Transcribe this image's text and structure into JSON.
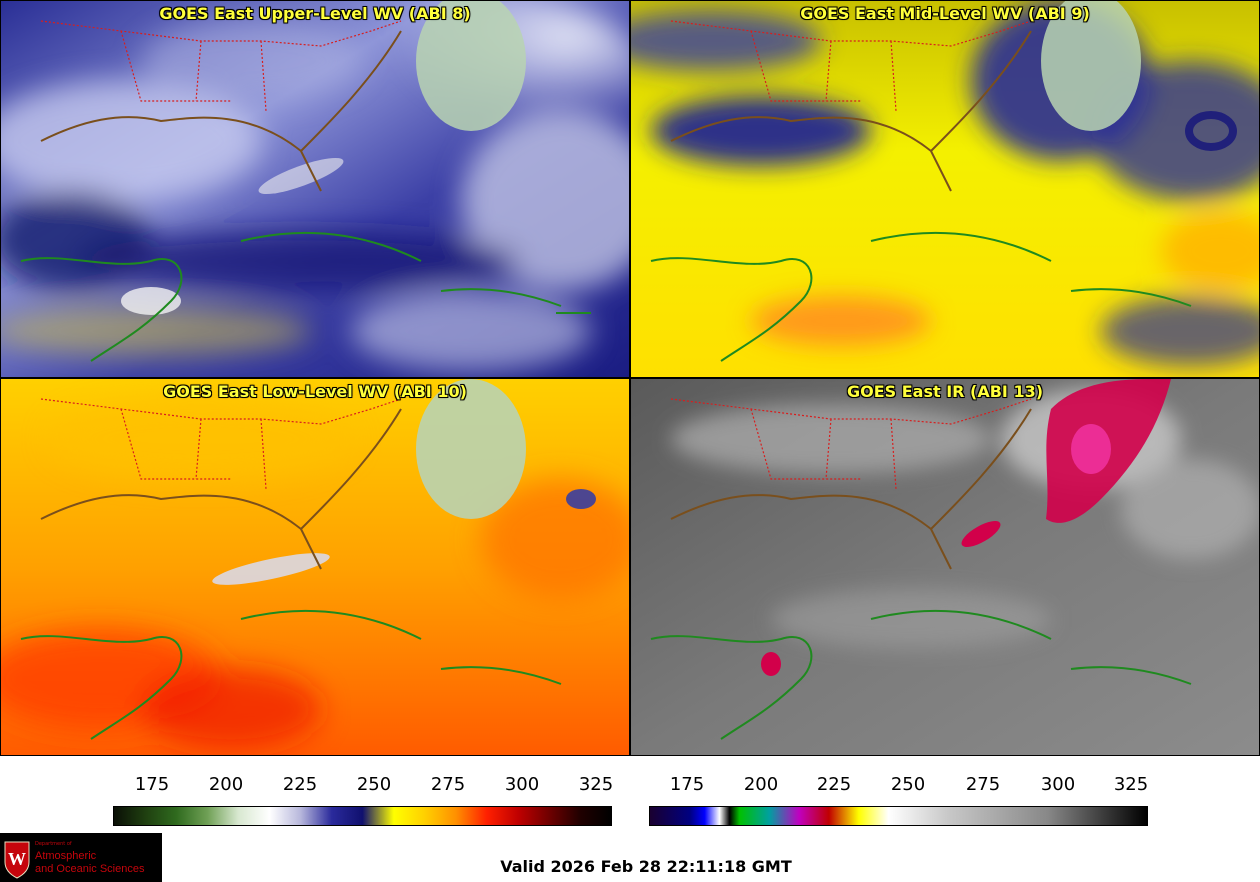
{
  "panels": [
    {
      "title": "GOES East Upper-Level WV (ABI 8)",
      "palette": "wv_upper"
    },
    {
      "title": "GOES East Mid-Level WV (ABI 9)",
      "palette": "wv_mid"
    },
    {
      "title": "GOES East Low-Level WV (ABI 10)",
      "palette": "wv_low"
    },
    {
      "title": "GOES East IR (ABI 13)",
      "palette": "ir"
    }
  ],
  "colorbars": [
    {
      "name": "wv",
      "ticks": [
        "175",
        "200",
        "225",
        "250",
        "275",
        "300",
        "325"
      ],
      "stops": [
        "#0a0f06",
        "#1f3f10",
        "#2f6a1e",
        "#6fa055",
        "#d8e8d0",
        "#ffffff",
        "#b8b8dc",
        "#2a2a9c",
        "#10106e",
        "#ffff00",
        "#ffd000",
        "#ff9000",
        "#ff2000",
        "#c00000",
        "#700000",
        "#200000",
        "#000000"
      ]
    },
    {
      "name": "ir",
      "ticks": [
        "175",
        "200",
        "225",
        "250",
        "275",
        "300",
        "325"
      ]
    }
  ],
  "colors": {
    "title_text": "#ffff3c",
    "state_borders": "#d81e1e",
    "coastlines_land": "#1f8a1f",
    "coastlines_us": "#6b4a1f"
  },
  "footer": {
    "valid_time": "Valid 2026 Feb 28 22:11:18 GMT"
  },
  "logo": {
    "dept": "Department of",
    "line1": "Atmospheric",
    "line2": "and Oceanic Sciences",
    "seal_letter": "W"
  }
}
